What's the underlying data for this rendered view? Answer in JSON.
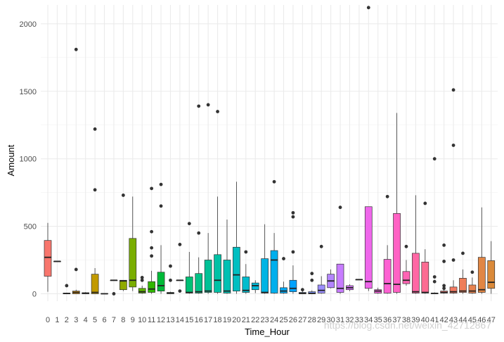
{
  "chart_data": {
    "type": "boxplot",
    "title": "",
    "xlabel": "Time_Hour",
    "ylabel": "Amount",
    "ylim": [
      -55,
      2140
    ],
    "y_ticks": [
      0,
      500,
      1000,
      1500,
      2000
    ],
    "grid": true,
    "legend": "none",
    "categories": [
      "0",
      "1",
      "2",
      "3",
      "4",
      "5",
      "6",
      "7",
      "8",
      "9",
      "10",
      "11",
      "12",
      "13",
      "14",
      "15",
      "16",
      "17",
      "18",
      "19",
      "20",
      "21",
      "22",
      "23",
      "24",
      "25",
      "26",
      "27",
      "28",
      "29",
      "30",
      "31",
      "32",
      "33",
      "34",
      "35",
      "36",
      "37",
      "38",
      "39",
      "40",
      "41",
      "42",
      "43",
      "44",
      "45",
      "46",
      "47"
    ],
    "boxes": [
      {
        "cat": "0",
        "min": 15,
        "q1": 130,
        "median": 270,
        "q3": 395,
        "max": 525,
        "outliers": []
      },
      {
        "cat": "1",
        "min": 240,
        "q1": 240,
        "median": 240,
        "q3": 240,
        "max": 240,
        "outliers": []
      },
      {
        "cat": "2",
        "min": 0,
        "q1": 0,
        "median": 2,
        "q3": 5,
        "max": 8,
        "outliers": [
          60
        ]
      },
      {
        "cat": "3",
        "min": 0,
        "q1": 0,
        "median": 10,
        "q3": 20,
        "max": 30,
        "outliers": [
          1810,
          180
        ]
      },
      {
        "cat": "4",
        "min": 0,
        "q1": 0,
        "median": 3,
        "q3": 8,
        "max": 12,
        "outliers": []
      },
      {
        "cat": "5",
        "min": 0,
        "q1": 0,
        "median": 10,
        "q3": 145,
        "max": 190,
        "outliers": [
          1220,
          770
        ]
      },
      {
        "cat": "6",
        "min": 0,
        "q1": 0,
        "median": 0,
        "q3": 2,
        "max": 3,
        "outliers": []
      },
      {
        "cat": "7",
        "min": 100,
        "q1": 100,
        "median": 100,
        "q3": 100,
        "max": 100,
        "outliers": [
          0
        ]
      },
      {
        "cat": "8",
        "min": 20,
        "q1": 30,
        "median": 95,
        "q3": 100,
        "max": 100,
        "outliers": [
          730
        ]
      },
      {
        "cat": "9",
        "min": 20,
        "q1": 50,
        "median": 100,
        "q3": 410,
        "max": 720,
        "outliers": []
      },
      {
        "cat": "10",
        "min": 0,
        "q1": 5,
        "median": 15,
        "q3": 40,
        "max": 60,
        "outliers": [
          120,
          100
        ]
      },
      {
        "cat": "11",
        "min": 0,
        "q1": 10,
        "median": 35,
        "q3": 90,
        "max": 170,
        "outliers": [
          780,
          460,
          340,
          280
        ]
      },
      {
        "cat": "12",
        "min": 0,
        "q1": 20,
        "median": 60,
        "q3": 160,
        "max": 360,
        "outliers": [
          810,
          650
        ]
      },
      {
        "cat": "13",
        "min": 0,
        "q1": 0,
        "median": 5,
        "q3": 10,
        "max": 15,
        "outliers": [
          205,
          100
        ]
      },
      {
        "cat": "14",
        "min": 100,
        "q1": 100,
        "median": 100,
        "q3": 100,
        "max": 100,
        "outliers": [
          365,
          20
        ]
      },
      {
        "cat": "15",
        "min": 0,
        "q1": 5,
        "median": 10,
        "q3": 125,
        "max": 310,
        "outliers": [
          520
        ]
      },
      {
        "cat": "16",
        "min": 0,
        "q1": 5,
        "median": 15,
        "q3": 150,
        "max": 270,
        "outliers": [
          1390,
          450
        ]
      },
      {
        "cat": "17",
        "min": 0,
        "q1": 10,
        "median": 20,
        "q3": 250,
        "max": 450,
        "outliers": [
          1400
        ]
      },
      {
        "cat": "18",
        "min": 0,
        "q1": 10,
        "median": 100,
        "q3": 290,
        "max": 720,
        "outliers": [
          1350
        ]
      },
      {
        "cat": "19",
        "min": 0,
        "q1": 5,
        "median": 20,
        "q3": 250,
        "max": 550,
        "outliers": []
      },
      {
        "cat": "20",
        "min": 0,
        "q1": 20,
        "median": 140,
        "q3": 345,
        "max": 830,
        "outliers": []
      },
      {
        "cat": "21",
        "min": 0,
        "q1": 10,
        "median": 25,
        "q3": 125,
        "max": 220,
        "outliers": [
          310
        ]
      },
      {
        "cat": "22",
        "min": 5,
        "q1": 30,
        "median": 60,
        "q3": 80,
        "max": 100,
        "outliers": []
      },
      {
        "cat": "23",
        "min": 0,
        "q1": 5,
        "median": 10,
        "q3": 260,
        "max": 515,
        "outliers": []
      },
      {
        "cat": "24",
        "min": 0,
        "q1": 5,
        "median": 250,
        "q3": 320,
        "max": 450,
        "outliers": [
          830
        ]
      },
      {
        "cat": "25",
        "min": 0,
        "q1": 5,
        "median": 20,
        "q3": 45,
        "max": 90,
        "outliers": [
          260
        ]
      },
      {
        "cat": "26",
        "min": 0,
        "q1": 15,
        "median": 40,
        "q3": 100,
        "max": 210,
        "outliers": [
          600,
          570,
          310
        ]
      },
      {
        "cat": "27",
        "min": 0,
        "q1": 0,
        "median": 3,
        "q3": 10,
        "max": 25,
        "outliers": [
          30
        ]
      },
      {
        "cat": "28",
        "min": 0,
        "q1": 0,
        "median": 3,
        "q3": 15,
        "max": 25,
        "outliers": [
          150,
          100
        ]
      },
      {
        "cat": "29",
        "min": 0,
        "q1": 5,
        "median": 25,
        "q3": 65,
        "max": 130,
        "outliers": [
          350
        ]
      },
      {
        "cat": "30",
        "min": 40,
        "q1": 45,
        "median": 95,
        "q3": 145,
        "max": 180,
        "outliers": []
      },
      {
        "cat": "31",
        "min": 0,
        "q1": 10,
        "median": 40,
        "q3": 220,
        "max": 220,
        "outliers": [
          640
        ]
      },
      {
        "cat": "32",
        "min": 20,
        "q1": 30,
        "median": 45,
        "q3": 60,
        "max": 70,
        "outliers": []
      },
      {
        "cat": "33",
        "min": 105,
        "q1": 105,
        "median": 105,
        "q3": 105,
        "max": 105,
        "outliers": []
      },
      {
        "cat": "34",
        "min": 20,
        "q1": 40,
        "median": 90,
        "q3": 645,
        "max": 645,
        "outliers": [
          2120
        ]
      },
      {
        "cat": "35",
        "min": 0,
        "q1": 5,
        "median": 20,
        "q3": 30,
        "max": 45,
        "outliers": []
      },
      {
        "cat": "36",
        "min": 0,
        "q1": 5,
        "median": 75,
        "q3": 255,
        "max": 360,
        "outliers": [
          720
        ]
      },
      {
        "cat": "37",
        "min": 0,
        "q1": 10,
        "median": 70,
        "q3": 595,
        "max": 1340,
        "outliers": []
      },
      {
        "cat": "38",
        "min": 60,
        "q1": 75,
        "median": 100,
        "q3": 165,
        "max": 250,
        "outliers": [
          350
        ]
      },
      {
        "cat": "39",
        "min": 0,
        "q1": 5,
        "median": 15,
        "q3": 300,
        "max": 730,
        "outliers": []
      },
      {
        "cat": "40",
        "min": 0,
        "q1": 5,
        "median": 10,
        "q3": 235,
        "max": 330,
        "outliers": [
          670
        ]
      },
      {
        "cat": "41",
        "min": 0,
        "q1": 0,
        "median": 3,
        "q3": 5,
        "max": 10,
        "outliers": [
          1000,
          125,
          90
        ]
      },
      {
        "cat": "42",
        "min": 0,
        "q1": 5,
        "median": 10,
        "q3": 20,
        "max": 35,
        "outliers": [
          360,
          240,
          60,
          40
        ]
      },
      {
        "cat": "43",
        "min": 0,
        "q1": 5,
        "median": 15,
        "q3": 50,
        "max": 100,
        "outliers": [
          1510,
          1100,
          250
        ]
      },
      {
        "cat": "44",
        "min": 0,
        "q1": 10,
        "median": 20,
        "q3": 115,
        "max": 180,
        "outliers": [
          300
        ]
      },
      {
        "cat": "45",
        "min": 0,
        "q1": 5,
        "median": 20,
        "q3": 65,
        "max": 120,
        "outliers": [
          160
        ]
      },
      {
        "cat": "46",
        "min": 0,
        "q1": 10,
        "median": 30,
        "q3": 270,
        "max": 640,
        "outliers": []
      },
      {
        "cat": "47",
        "min": 0,
        "q1": 40,
        "median": 85,
        "q3": 245,
        "max": 390,
        "outliers": []
      }
    ],
    "colors": [
      "#F8766D",
      "#F07E4C",
      "#E7851E",
      "#DB8E00",
      "#CF9400",
      "#C29A00",
      "#B4A000",
      "#A3A500",
      "#90AA00",
      "#7AAE00",
      "#5EB300",
      "#31B600",
      "#00BA38",
      "#00BC4F",
      "#00BE63",
      "#00C075",
      "#00C186",
      "#00C196",
      "#00C1A5",
      "#00C0B3",
      "#00BFC1",
      "#00BCCD",
      "#00B9D9",
      "#00B4E4",
      "#00AFED",
      "#00A9F6",
      "#00A2FD",
      "#399AFF",
      "#7C96FF",
      "#9B8EFF",
      "#B385FF",
      "#C77CFF",
      "#D774FC",
      "#E46DF5",
      "#EF67EB",
      "#F763E0",
      "#FD61D2",
      "#FF62C4",
      "#FF64B4",
      "#FF67A4",
      "#FC6B92",
      "#F86E80",
      "#F8766D",
      "#F47A62",
      "#EF7E58",
      "#E8824E",
      "#E18644",
      "#DA8A3A"
    ]
  },
  "watermark": "https://blog.csdn.net/weixin_42712867"
}
